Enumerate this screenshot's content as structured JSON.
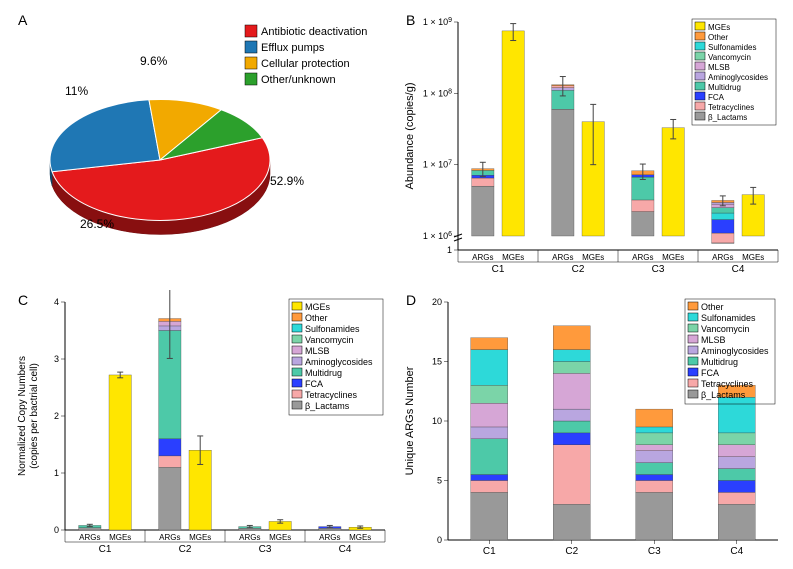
{
  "panel_labels": {
    "A": "A",
    "B": "B",
    "C": "C",
    "D": "D"
  },
  "colors": {
    "red": "#e41a1c",
    "blue": "#1f77b4",
    "orange": "#f2a900",
    "green": "#2ca02c",
    "MGEs": "#ffe600",
    "Other": "#ff9a3c",
    "Sulfonamides": "#2dd9d9",
    "Vancomycin": "#7bd4a8",
    "MLSB": "#d6a6d6",
    "Aminoglycosides": "#b9a6e0",
    "Multidrug": "#4dc9a8",
    "FCA": "#2a3fff",
    "Tetracyclines": "#f7a8a8",
    "Beta_Lactams": "#999999",
    "axis": "#000000",
    "background": "#ffffff",
    "errbar": "#444444"
  },
  "pieA": {
    "slices": [
      {
        "label": "Antibiotic deactivation",
        "value": 52.9,
        "color_key": "red",
        "text": "52.9%"
      },
      {
        "label": "Efflux pumps",
        "value": 26.5,
        "color_key": "blue",
        "text": "26.5%"
      },
      {
        "label": "Cellular protection",
        "value": 11,
        "color_key": "orange",
        "text": "11%"
      },
      {
        "label": "Other/unknown",
        "value": 9.6,
        "color_key": "green",
        "text": "9.6%"
      }
    ],
    "tilt": 0.55,
    "depth": 14
  },
  "chartB": {
    "ylabel": "Abundance (copies/g)",
    "ylog_ticks": [
      1,
      1000000.0,
      10000000.0,
      100000000.0,
      1000000000.0
    ],
    "ylog_labels": [
      "1",
      "1 × 10^6",
      "1 × 10^7",
      "1 × 10^8",
      "1 × 10^9"
    ],
    "groups": [
      "C1",
      "C2",
      "C3",
      "C4"
    ],
    "x_sub": [
      "ARGs",
      "MGEs"
    ],
    "legend": [
      "MGEs",
      "Other",
      "Sulfonamides",
      "Vancomycin",
      "MLSB",
      "Aminoglycosides",
      "Multidrug",
      "FCA",
      "Tetracyclines",
      "β_Lactams"
    ],
    "args_stacks": [
      [
        [
          "Beta_Lactams",
          5000000.0
        ],
        [
          "Tetracyclines",
          1500000.0
        ],
        [
          "FCA",
          600000.0
        ],
        [
          "Multidrug",
          1200000.0
        ],
        [
          "Other",
          500000.0
        ]
      ],
      [
        [
          "Beta_Lactams",
          60000000.0
        ],
        [
          "Multidrug",
          50000000.0
        ],
        [
          "Aminoglycosides",
          10000000.0
        ],
        [
          "Tetracyclines",
          8000000.0
        ],
        [
          "Other",
          4000000.0
        ]
      ],
      [
        [
          "Beta_Lactams",
          2200000.0
        ],
        [
          "Tetracyclines",
          1000000.0
        ],
        [
          "Multidrug",
          3500000.0
        ],
        [
          "FCA",
          500000.0
        ],
        [
          "Other",
          1000000.0
        ]
      ],
      [
        [
          "Beta_Lactams",
          800000.0
        ],
        [
          "Tetracyclines",
          300000.0
        ],
        [
          "FCA",
          600000.0
        ],
        [
          "Sulfonamides",
          400000.0
        ],
        [
          "Multidrug",
          400000.0
        ],
        [
          "MLSB",
          300000.0
        ],
        [
          "Aminoglycosides",
          150000.0
        ],
        [
          "Other",
          200000.0
        ]
      ]
    ],
    "args_err": [
      2000000.0,
      40000000.0,
      2000000.0,
      500000.0
    ],
    "mges": [
      750000000.0,
      40000000.0,
      33000000.0,
      3800000.0
    ],
    "mges_err": [
      200000000.0,
      30000000.0,
      10000000.0,
      1000000.0
    ],
    "axis_break": true
  },
  "chartC": {
    "ylabel": "Normalized Copy Numbers\n(copies per bactrial cell)",
    "yticks": [
      0,
      1,
      2,
      3,
      4
    ],
    "groups": [
      "C1",
      "C2",
      "C3",
      "C4"
    ],
    "x_sub": [
      "ARGs",
      "MGEs"
    ],
    "legend": [
      "MGEs",
      "Other",
      "Sulfonamides",
      "Vancomycin",
      "MLSB",
      "Aminoglycosides",
      "Multidrug",
      "FCA",
      "Tetracyclines",
      "β_Lactams"
    ],
    "args_stacks": [
      [
        [
          "Beta_Lactams",
          0.04
        ],
        [
          "Multidrug",
          0.04
        ]
      ],
      [
        [
          "Beta_Lactams",
          1.1
        ],
        [
          "Tetracyclines",
          0.2
        ],
        [
          "FCA",
          0.3
        ],
        [
          "Multidrug",
          1.9
        ],
        [
          "Aminoglycosides",
          0.08
        ],
        [
          "MLSB",
          0.08
        ],
        [
          "Other",
          0.05
        ]
      ],
      [
        [
          "Beta_Lactams",
          0.03
        ],
        [
          "Multidrug",
          0.03
        ]
      ],
      [
        [
          "Beta_Lactams",
          0.03
        ],
        [
          "FCA",
          0.03
        ]
      ]
    ],
    "args_err": [
      0.02,
      0.7,
      0.02,
      0.02
    ],
    "mges": [
      2.72,
      1.4,
      0.15,
      0.05
    ],
    "mges_err": [
      0.05,
      0.25,
      0.03,
      0.02
    ]
  },
  "chartD": {
    "ylabel": "Unique ARGs Number",
    "yticks": [
      0,
      5,
      10,
      15,
      20
    ],
    "groups": [
      "C1",
      "C2",
      "C3",
      "C4"
    ],
    "legend": [
      "Other",
      "Sulfonamides",
      "Vancomycin",
      "MLSB",
      "Aminoglycosides",
      "Multidrug",
      "FCA",
      "Tetracyclines",
      "β_Lactams"
    ],
    "stacks": [
      [
        [
          "Beta_Lactams",
          4
        ],
        [
          "Tetracyclines",
          1
        ],
        [
          "FCA",
          0.5
        ],
        [
          "Multidrug",
          3
        ],
        [
          "Aminoglycosides",
          1
        ],
        [
          "MLSB",
          2
        ],
        [
          "Vancomycin",
          1.5
        ],
        [
          "Sulfonamides",
          3
        ],
        [
          "Other",
          1
        ]
      ],
      [
        [
          "Beta_Lactams",
          3
        ],
        [
          "Tetracyclines",
          5
        ],
        [
          "FCA",
          1
        ],
        [
          "Multidrug",
          1
        ],
        [
          "Aminoglycosides",
          1
        ],
        [
          "MLSB",
          3
        ],
        [
          "Vancomycin",
          1
        ],
        [
          "Sulfonamides",
          1
        ],
        [
          "Other",
          2
        ]
      ],
      [
        [
          "Beta_Lactams",
          4
        ],
        [
          "Tetracyclines",
          1
        ],
        [
          "FCA",
          0.5
        ],
        [
          "Multidrug",
          1
        ],
        [
          "Aminoglycosides",
          1
        ],
        [
          "MLSB",
          0.5
        ],
        [
          "Vancomycin",
          1
        ],
        [
          "Sulfonamides",
          0.5
        ],
        [
          "Other",
          1.5
        ]
      ],
      [
        [
          "Beta_Lactams",
          3
        ],
        [
          "Tetracyclines",
          1
        ],
        [
          "FCA",
          1
        ],
        [
          "Multidrug",
          1
        ],
        [
          "Aminoglycosides",
          1
        ],
        [
          "MLSB",
          1
        ],
        [
          "Vancomycin",
          1
        ],
        [
          "Sulfonamides",
          3
        ],
        [
          "Other",
          1
        ]
      ]
    ]
  }
}
